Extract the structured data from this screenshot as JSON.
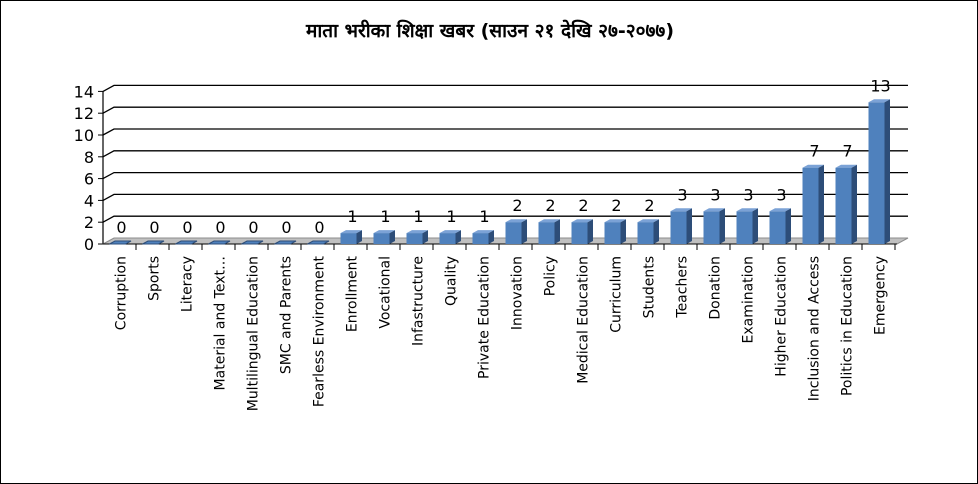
{
  "chart_data": {
    "type": "bar",
    "title": "माता भरीका शिक्षा खबर (साउन २१ देखि २७-२०७७)",
    "categories": [
      "Corruption",
      "Sports",
      "Literacy",
      "Material and Text…",
      "Multilingual Education",
      "SMC and Parents",
      "Fearless Environment",
      "Enrollment",
      "Vocational",
      "Infastructure",
      "Quality",
      "Private Education",
      "Innovation",
      "Policy",
      "Medical Education",
      "Curriculum",
      "Students",
      "Teachers",
      "Donation",
      "Examination",
      "Higher Education",
      "Inclusion and Access",
      "Politics in Education",
      "Emergency"
    ],
    "values": [
      0,
      0,
      0,
      0,
      0,
      0,
      0,
      1,
      1,
      1,
      1,
      1,
      2,
      2,
      2,
      2,
      2,
      3,
      3,
      3,
      3,
      7,
      7,
      13
    ],
    "y_ticks": [
      "0",
      "2",
      "4",
      "6",
      "8",
      "10",
      "12",
      "14"
    ],
    "ylim": [
      0,
      14
    ],
    "xlabel": "",
    "ylabel": "",
    "grid": true,
    "legend": "none",
    "bar_color": "#4f81bd",
    "bar_side_color": "#2d4d78",
    "bar_top_color": "#7ba2d6",
    "floor_color": "#c0c0c0"
  }
}
